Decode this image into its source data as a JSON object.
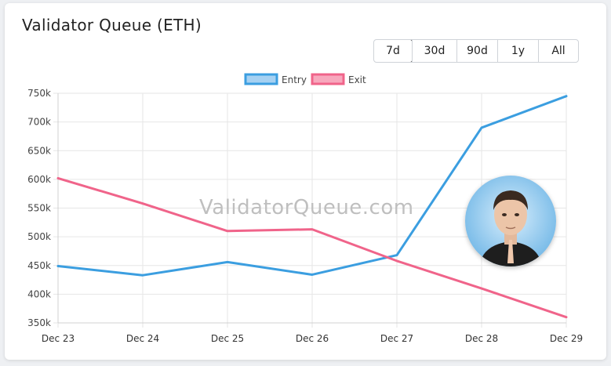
{
  "title": "Validator Queue (ETH)",
  "range_buttons": [
    {
      "label": "7d",
      "active": true
    },
    {
      "label": "30d",
      "active": false
    },
    {
      "label": "90d",
      "active": false
    },
    {
      "label": "1y",
      "active": false
    },
    {
      "label": "All",
      "active": false
    }
  ],
  "watermark": "ValidatorQueue.com",
  "colors": {
    "entry": "#3b9ee0",
    "exit": "#f0648a",
    "entry_fill": "#a6d1f2",
    "exit_fill": "#f7a8bd",
    "grid": "#e6e6e6"
  },
  "chart_data": {
    "type": "line",
    "title": "",
    "xlabel": "",
    "ylabel": "",
    "categories": [
      "Dec 23",
      "Dec 24",
      "Dec 25",
      "Dec 26",
      "Dec 27",
      "Dec 28",
      "Dec 29"
    ],
    "ylim": [
      350000,
      750000
    ],
    "yticks": [
      350000,
      400000,
      450000,
      500000,
      550000,
      600000,
      650000,
      700000,
      750000
    ],
    "ytick_labels": [
      "350k",
      "400k",
      "450k",
      "500k",
      "550k",
      "600k",
      "650k",
      "700k",
      "750k"
    ],
    "legend_position": "top-center",
    "grid": true,
    "series": [
      {
        "name": "Entry",
        "color_key": "entry",
        "values": [
          449000,
          433000,
          456000,
          434000,
          468000,
          690000,
          745000
        ]
      },
      {
        "name": "Exit",
        "color_key": "exit",
        "values": [
          602000,
          558000,
          510000,
          513000,
          458000,
          410000,
          360000
        ]
      }
    ]
  }
}
